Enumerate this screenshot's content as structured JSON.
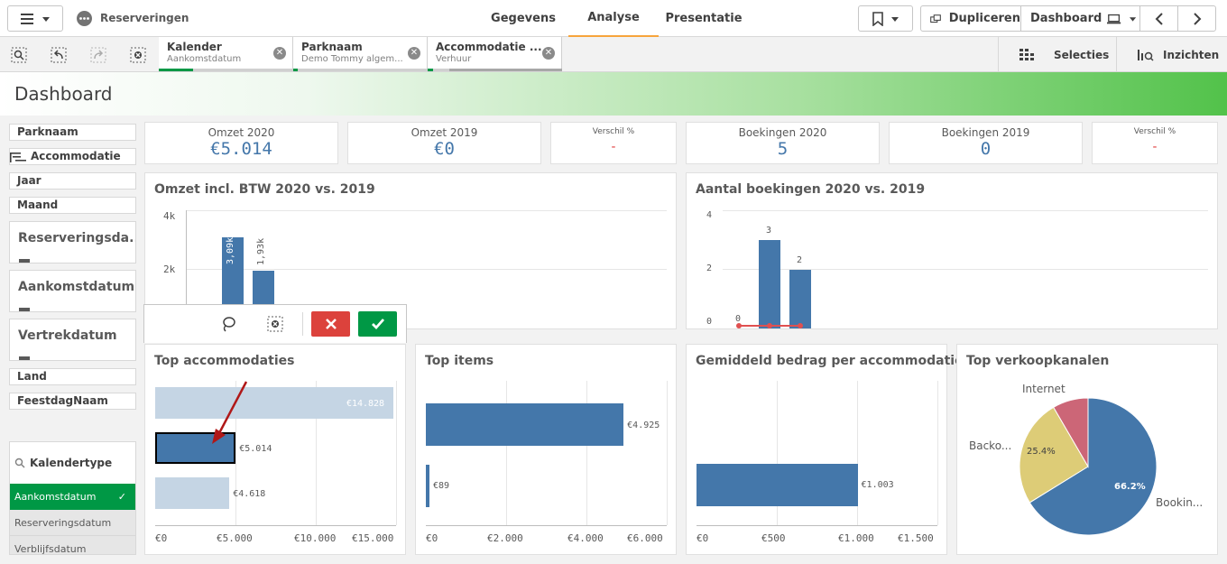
{
  "topbar": {
    "app_name": "Reserveringen",
    "tabs": [
      "Gegevens",
      "Analyse",
      "Presentatie"
    ],
    "active_tab": "Analyse",
    "duplicate_label": "Dupliceren",
    "dashboard_label": "Dashboard"
  },
  "selections": [
    {
      "title": "Kalender",
      "subtitle": "Aankomstdatum"
    },
    {
      "title": "Parknaam",
      "subtitle": "Demo Tommy algem..."
    },
    {
      "title": "Accommodatie ...",
      "subtitle": "Verhuur"
    }
  ],
  "right_tools": {
    "selecties": "Selecties",
    "inzichten": "Inzichten"
  },
  "sheet_title": "Dashboard",
  "filters": {
    "parknaam": "Parknaam",
    "accommodatie": "Accommodatie",
    "jaar": "Jaar",
    "maand": "Maand",
    "reserveringsdatum": "Reserveringsda...",
    "aankomstdatum": "Aankomstdatum",
    "vertrekdatum": "Vertrekdatum",
    "land": "Land",
    "feestdag": "FeestdagNaam",
    "kalendertype": {
      "title": "Kalendertype",
      "options": [
        "Aankomstdatum",
        "Reserveringsdatum",
        "Verblijfsdatum"
      ],
      "selected": "Aankomstdatum"
    }
  },
  "kpis": [
    {
      "label": "Omzet 2020",
      "value": "€5.014"
    },
    {
      "label": "Omzet 2019",
      "value": "€0"
    },
    {
      "label": "Verschil %",
      "value": "-"
    },
    {
      "label": "Boekingen 2020",
      "value": "5"
    },
    {
      "label": "Boekingen 2019",
      "value": "0"
    },
    {
      "label": "Verschil %",
      "value": "-"
    }
  ],
  "chart_data": [
    {
      "type": "bar",
      "title": "Omzet incl. BTW 2020 vs. 2019",
      "ylim": [
        0,
        4000
      ],
      "yticks": [
        "4k",
        "2k"
      ],
      "values": [
        3090,
        1930
      ],
      "data_labels": [
        "3,09k",
        "1,93k"
      ],
      "color": "#4477aa"
    },
    {
      "type": "bar",
      "title": "Aantal boekingen 2020 vs. 2019",
      "ylim": [
        0,
        4
      ],
      "yticks": [
        "4",
        "2",
        "0"
      ],
      "values": [
        0,
        3,
        2
      ],
      "data_labels": [
        "0",
        "3",
        "2"
      ],
      "color": "#4477aa"
    },
    {
      "type": "bar",
      "orientation": "horizontal",
      "title": "Top accommodaties",
      "xlim": [
        0,
        15000
      ],
      "xticks": [
        "€0",
        "€5.000",
        "€10.000",
        "€15.000"
      ],
      "values": [
        14828,
        5014,
        4618
      ],
      "data_labels": [
        "€14.828",
        "€5.014",
        "€4.618"
      ],
      "selected_index": 1
    },
    {
      "type": "bar",
      "orientation": "horizontal",
      "title": "Top items",
      "xlim": [
        0,
        6000
      ],
      "xticks": [
        "€0",
        "€2.000",
        "€4.000",
        "€6.000"
      ],
      "values": [
        4925,
        89
      ],
      "data_labels": [
        "€4.925",
        "€89"
      ]
    },
    {
      "type": "bar",
      "orientation": "horizontal",
      "title": "Gemiddeld bedrag per accommodatie...",
      "xlim": [
        0,
        1500
      ],
      "xticks": [
        "€0",
        "€500",
        "€1.000",
        "€1.500"
      ],
      "values": [
        1003
      ],
      "data_labels": [
        "€1.003"
      ]
    },
    {
      "type": "pie",
      "title": "Top verkoopkanalen",
      "slices": [
        {
          "label": "Bookin...",
          "value": 66.2,
          "pct_label": "66.2%",
          "color": "#4477aa"
        },
        {
          "label": "Backo...",
          "value": 25.4,
          "pct_label": "25.4%",
          "color": "#ddcc77"
        },
        {
          "label": "Internet",
          "value": 8.4,
          "color": "#cc6677"
        }
      ]
    }
  ]
}
